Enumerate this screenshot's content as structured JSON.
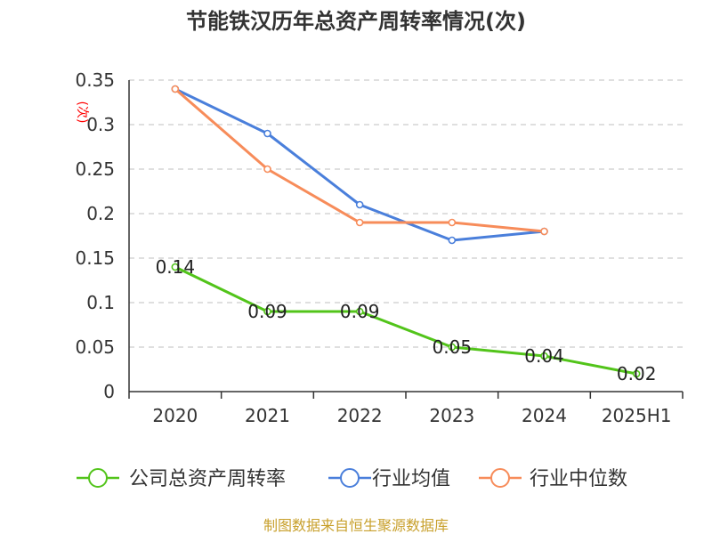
{
  "chart_data": {
    "type": "line",
    "title": "节能铁汉历年总资产周转率情况(次)",
    "unit_label": "(次)",
    "categories": [
      "2020",
      "2021",
      "2022",
      "2023",
      "2024",
      "2025H1"
    ],
    "ylim": [
      0,
      0.35
    ],
    "yticks": [
      0,
      0.05,
      0.1,
      0.15,
      0.2,
      0.25,
      0.3,
      0.35
    ],
    "ytick_labels": [
      "0",
      "0.05",
      "0.1",
      "0.15",
      "0.2",
      "0.25",
      "0.3",
      "0.35"
    ],
    "grid": true,
    "legend_position": "bottom",
    "series": [
      {
        "name": "公司总资产周转率",
        "color": "#52c41a",
        "values": [
          0.14,
          0.09,
          0.09,
          0.05,
          0.04,
          0.02
        ],
        "labels": [
          "0.14",
          "0.09",
          "0.09",
          "0.05",
          "0.04",
          "0.02"
        ]
      },
      {
        "name": "行业均值",
        "color": "#4a7fdb",
        "values": [
          0.34,
          0.29,
          0.21,
          0.17,
          0.18,
          null
        ]
      },
      {
        "name": "行业中位数",
        "color": "#f78c5a",
        "values": [
          0.34,
          0.25,
          0.19,
          0.19,
          0.18,
          null
        ]
      }
    ],
    "source": "制图数据来自恒生聚源数据库"
  }
}
